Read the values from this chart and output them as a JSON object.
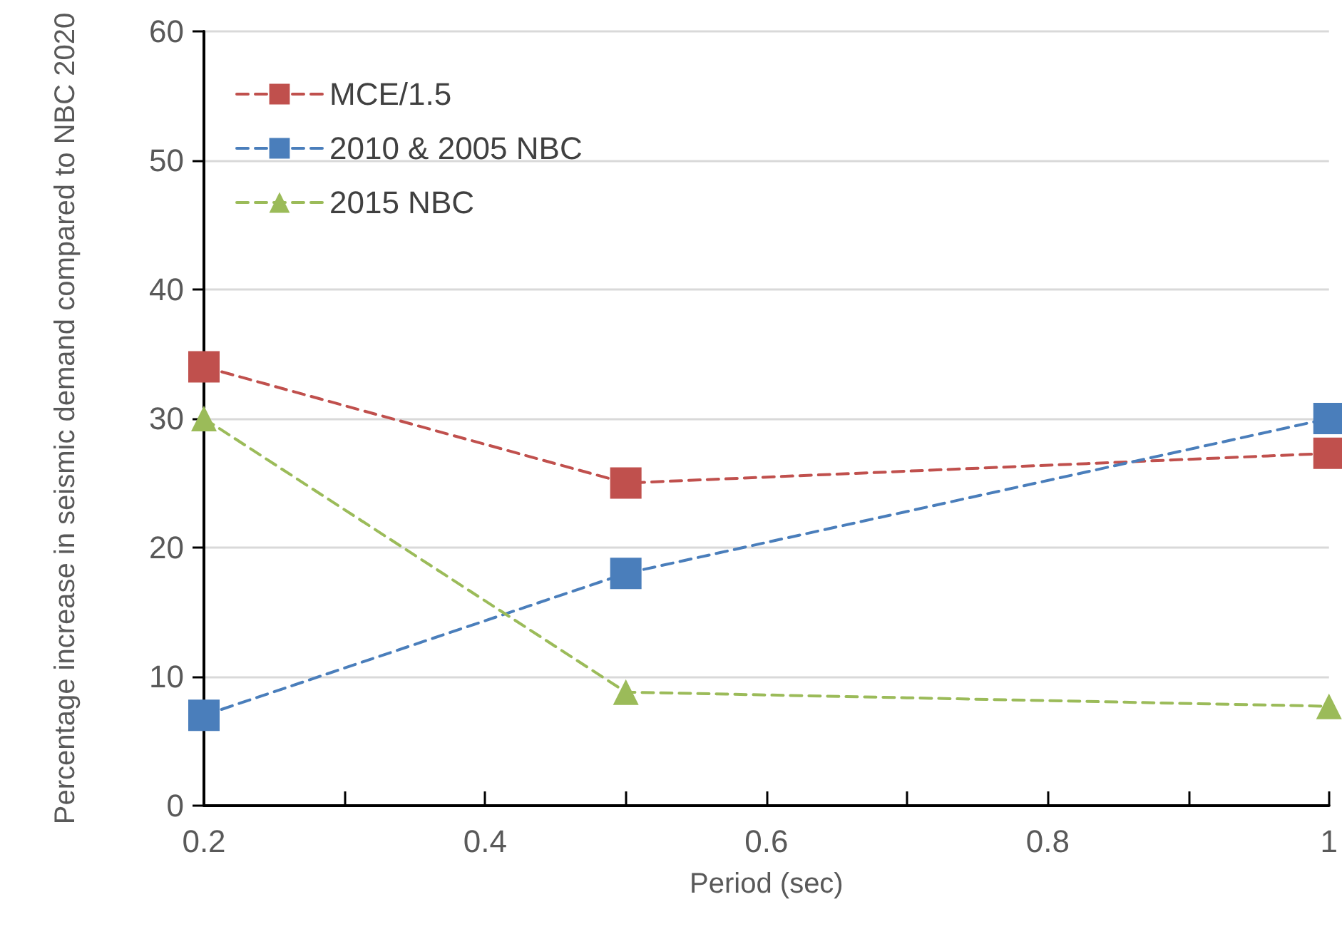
{
  "chart_data": {
    "type": "line",
    "xlabel": "Period (sec)",
    "ylabel": "Percentage increase in seismic demand compared to NBC 2020",
    "x": [
      0.2,
      0.5,
      1
    ],
    "series": [
      {
        "name": "MCE/1.5",
        "color": "#c0504d",
        "values": [
          34,
          25,
          27.3
        ],
        "marker": "square"
      },
      {
        "name": "2010 & 2005 NBC",
        "color": "#4a7ebb",
        "values": [
          7,
          18,
          30
        ],
        "marker": "square"
      },
      {
        "name": "2015 NBC",
        "color": "#9bbb59",
        "values": [
          30,
          8.8,
          7.7
        ],
        "marker": "triangle"
      }
    ],
    "xlim": [
      0.2,
      1
    ],
    "xticks": [
      0.2,
      {
        "value": 0.3,
        "label": null
      },
      0.4,
      {
        "value": 0.5,
        "label": null
      },
      0.6,
      {
        "value": 0.7,
        "label": null
      },
      0.8,
      {
        "value": 0.9,
        "label": null
      },
      1
    ],
    "ylim": [
      0,
      60
    ],
    "yticks": [
      0,
      10,
      20,
      30,
      40,
      50,
      60
    ],
    "grid": "y",
    "legend": "top left",
    "line_style": "dashed"
  }
}
